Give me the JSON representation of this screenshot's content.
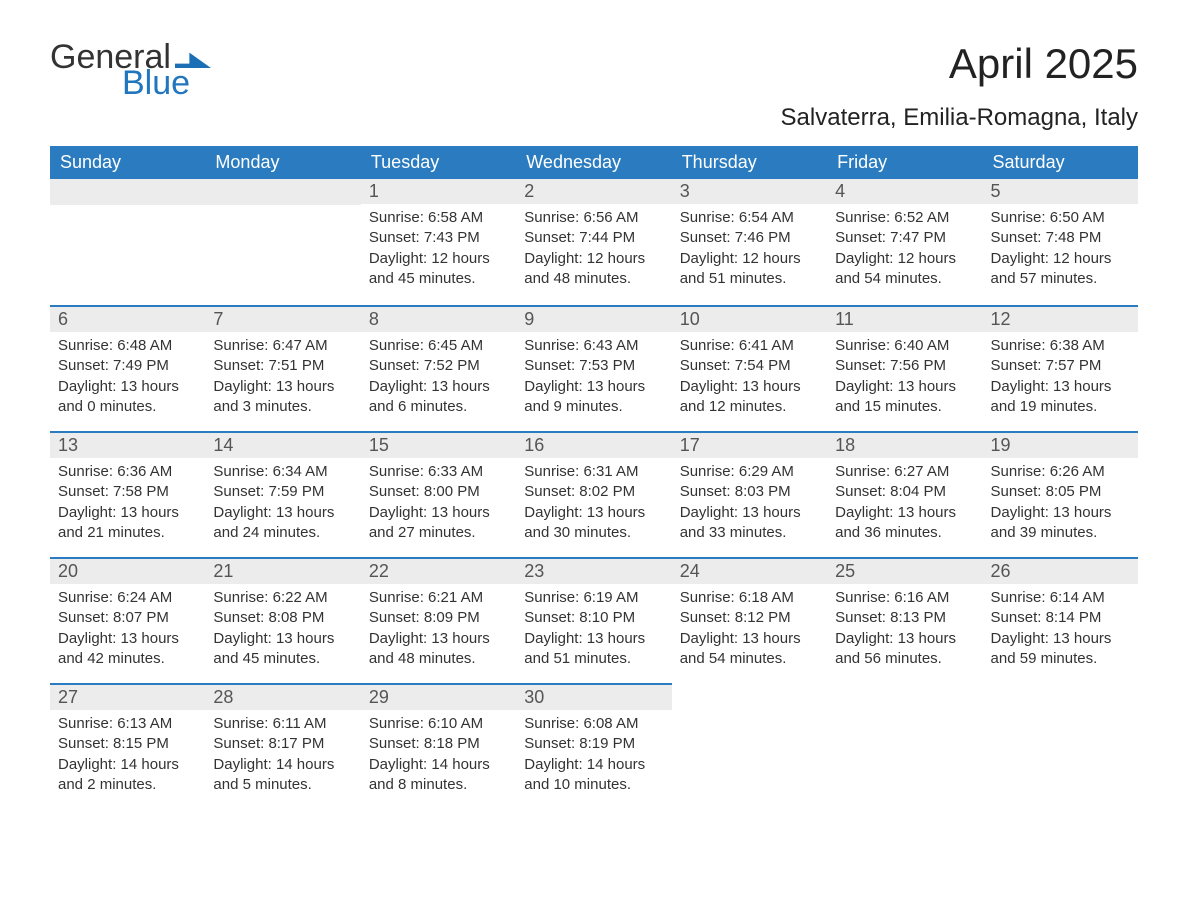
{
  "brand": {
    "word1": "General",
    "word2": "Blue"
  },
  "title": "April 2025",
  "location": "Salvaterra, Emilia-Romagna, Italy",
  "colors": {
    "header_bg": "#2a7bbf",
    "header_text": "#ffffff",
    "row_divider": "#2a7bbf",
    "daynum_bg": "#ececec",
    "body_text": "#333333",
    "page_bg": "#ffffff",
    "brand_blue": "#2176bd"
  },
  "columns": [
    "Sunday",
    "Monday",
    "Tuesday",
    "Wednesday",
    "Thursday",
    "Friday",
    "Saturday"
  ],
  "weeks": [
    [
      {
        "blank": true
      },
      {
        "blank": true
      },
      {
        "n": "1",
        "sunrise": "6:58 AM",
        "sunset": "7:43 PM",
        "dh": "12",
        "dm": "45"
      },
      {
        "n": "2",
        "sunrise": "6:56 AM",
        "sunset": "7:44 PM",
        "dh": "12",
        "dm": "48"
      },
      {
        "n": "3",
        "sunrise": "6:54 AM",
        "sunset": "7:46 PM",
        "dh": "12",
        "dm": "51"
      },
      {
        "n": "4",
        "sunrise": "6:52 AM",
        "sunset": "7:47 PM",
        "dh": "12",
        "dm": "54"
      },
      {
        "n": "5",
        "sunrise": "6:50 AM",
        "sunset": "7:48 PM",
        "dh": "12",
        "dm": "57"
      }
    ],
    [
      {
        "n": "6",
        "sunrise": "6:48 AM",
        "sunset": "7:49 PM",
        "dh": "13",
        "dm": "0"
      },
      {
        "n": "7",
        "sunrise": "6:47 AM",
        "sunset": "7:51 PM",
        "dh": "13",
        "dm": "3"
      },
      {
        "n": "8",
        "sunrise": "6:45 AM",
        "sunset": "7:52 PM",
        "dh": "13",
        "dm": "6"
      },
      {
        "n": "9",
        "sunrise": "6:43 AM",
        "sunset": "7:53 PM",
        "dh": "13",
        "dm": "9"
      },
      {
        "n": "10",
        "sunrise": "6:41 AM",
        "sunset": "7:54 PM",
        "dh": "13",
        "dm": "12"
      },
      {
        "n": "11",
        "sunrise": "6:40 AM",
        "sunset": "7:56 PM",
        "dh": "13",
        "dm": "15"
      },
      {
        "n": "12",
        "sunrise": "6:38 AM",
        "sunset": "7:57 PM",
        "dh": "13",
        "dm": "19"
      }
    ],
    [
      {
        "n": "13",
        "sunrise": "6:36 AM",
        "sunset": "7:58 PM",
        "dh": "13",
        "dm": "21"
      },
      {
        "n": "14",
        "sunrise": "6:34 AM",
        "sunset": "7:59 PM",
        "dh": "13",
        "dm": "24"
      },
      {
        "n": "15",
        "sunrise": "6:33 AM",
        "sunset": "8:00 PM",
        "dh": "13",
        "dm": "27"
      },
      {
        "n": "16",
        "sunrise": "6:31 AM",
        "sunset": "8:02 PM",
        "dh": "13",
        "dm": "30"
      },
      {
        "n": "17",
        "sunrise": "6:29 AM",
        "sunset": "8:03 PM",
        "dh": "13",
        "dm": "33"
      },
      {
        "n": "18",
        "sunrise": "6:27 AM",
        "sunset": "8:04 PM",
        "dh": "13",
        "dm": "36"
      },
      {
        "n": "19",
        "sunrise": "6:26 AM",
        "sunset": "8:05 PM",
        "dh": "13",
        "dm": "39"
      }
    ],
    [
      {
        "n": "20",
        "sunrise": "6:24 AM",
        "sunset": "8:07 PM",
        "dh": "13",
        "dm": "42"
      },
      {
        "n": "21",
        "sunrise": "6:22 AM",
        "sunset": "8:08 PM",
        "dh": "13",
        "dm": "45"
      },
      {
        "n": "22",
        "sunrise": "6:21 AM",
        "sunset": "8:09 PM",
        "dh": "13",
        "dm": "48"
      },
      {
        "n": "23",
        "sunrise": "6:19 AM",
        "sunset": "8:10 PM",
        "dh": "13",
        "dm": "51"
      },
      {
        "n": "24",
        "sunrise": "6:18 AM",
        "sunset": "8:12 PM",
        "dh": "13",
        "dm": "54"
      },
      {
        "n": "25",
        "sunrise": "6:16 AM",
        "sunset": "8:13 PM",
        "dh": "13",
        "dm": "56"
      },
      {
        "n": "26",
        "sunrise": "6:14 AM",
        "sunset": "8:14 PM",
        "dh": "13",
        "dm": "59"
      }
    ],
    [
      {
        "n": "27",
        "sunrise": "6:13 AM",
        "sunset": "8:15 PM",
        "dh": "14",
        "dm": "2"
      },
      {
        "n": "28",
        "sunrise": "6:11 AM",
        "sunset": "8:17 PM",
        "dh": "14",
        "dm": "5"
      },
      {
        "n": "29",
        "sunrise": "6:10 AM",
        "sunset": "8:18 PM",
        "dh": "14",
        "dm": "8"
      },
      {
        "n": "30",
        "sunrise": "6:08 AM",
        "sunset": "8:19 PM",
        "dh": "14",
        "dm": "10"
      },
      {
        "blank": true
      },
      {
        "blank": true
      },
      {
        "blank": true
      }
    ]
  ],
  "labels": {
    "sunrise": "Sunrise: ",
    "sunset": "Sunset: ",
    "daylight1": "Daylight: ",
    "daylight2": " hours and ",
    "daylight3": " minutes."
  }
}
